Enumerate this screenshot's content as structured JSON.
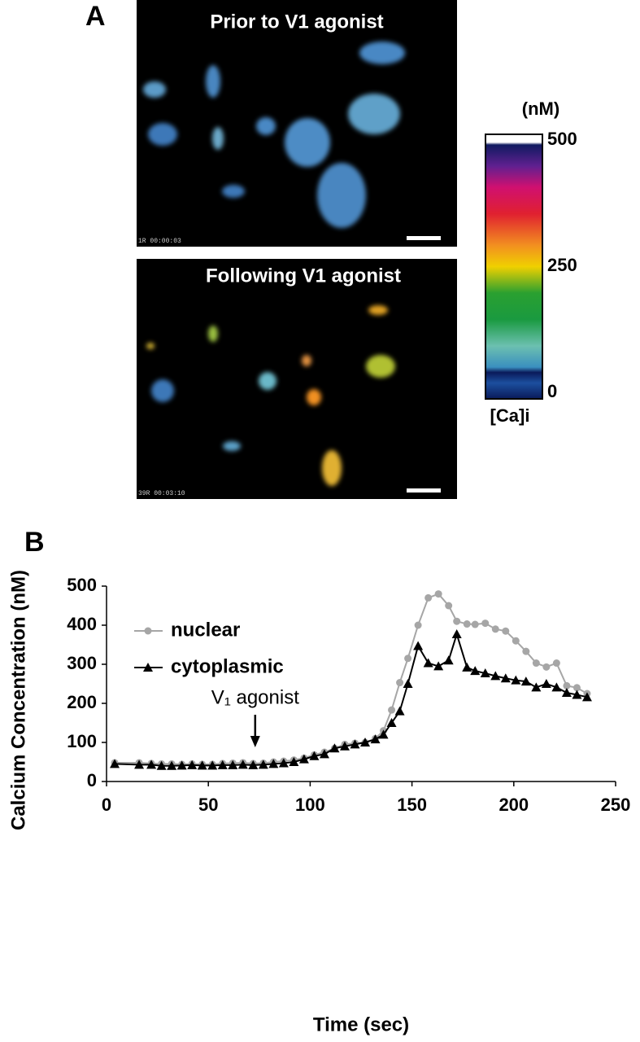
{
  "panel_a": {
    "label": "A",
    "images": [
      {
        "title": "Prior to V1 agonist",
        "timestamp": "1R 00:00:03"
      },
      {
        "title": "Following V1 agonist",
        "timestamp": "39R 00:03:10"
      }
    ],
    "colorbar": {
      "unit": "(nM)",
      "label": "[Ca]i",
      "lim": [
        0,
        500
      ],
      "ticks": [
        500,
        250,
        0
      ]
    }
  },
  "panel_b": {
    "label": "B"
  },
  "chart_data": {
    "type": "line",
    "xlabel": "Time (sec)",
    "ylabel": "Calcium Concentration (nM)",
    "x": [
      4,
      16,
      22,
      27,
      32,
      37,
      42,
      47,
      52,
      57,
      62,
      67,
      72,
      77,
      82,
      87,
      92,
      97,
      102,
      107,
      112,
      117,
      122,
      127,
      132,
      136,
      140,
      144,
      148,
      153,
      158,
      163,
      168,
      172,
      177,
      181,
      186,
      191,
      196,
      201,
      206,
      211,
      216,
      221,
      226,
      231,
      236
    ],
    "series": [
      {
        "name": "nuclear",
        "color": "#a6a6a6",
        "marker": "circle",
        "values": [
          48,
          48,
          46,
          45,
          45,
          44,
          45,
          44,
          44,
          46,
          47,
          48,
          46,
          47,
          50,
          52,
          55,
          60,
          68,
          75,
          85,
          95,
          98,
          100,
          110,
          130,
          183,
          253,
          315,
          400,
          470,
          480,
          450,
          410,
          403,
          402,
          405,
          390,
          385,
          360,
          333,
          303,
          293,
          303,
          245,
          240,
          225
        ]
      },
      {
        "name": "cytoplasmic",
        "color": "#000000",
        "marker": "triangle",
        "values": [
          45,
          43,
          43,
          40,
          40,
          41,
          42,
          41,
          41,
          42,
          42,
          43,
          42,
          43,
          45,
          47,
          50,
          57,
          65,
          70,
          85,
          90,
          95,
          100,
          108,
          120,
          150,
          180,
          250,
          347,
          303,
          295,
          310,
          377,
          292,
          283,
          277,
          270,
          264,
          259,
          256,
          241,
          250,
          241,
          227,
          222,
          216
        ]
      }
    ],
    "xlim": [
      0,
      250
    ],
    "xticks": [
      0,
      50,
      100,
      150,
      200,
      250
    ],
    "ylim": [
      0,
      500
    ],
    "yticks": [
      0,
      100,
      200,
      300,
      400,
      500
    ],
    "legend": "upper left",
    "annotations": [
      {
        "text": "V₁ agonist",
        "x": 73
      }
    ]
  }
}
